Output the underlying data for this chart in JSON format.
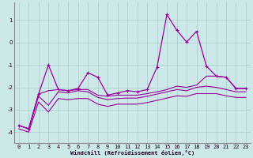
{
  "bg_color": "#cce8e8",
  "grid_color": "#aacccc",
  "line_color": "#990099",
  "xlabel": "Windchill (Refroidissement éolien,°C)",
  "xlim": [
    -0.5,
    23.5
  ],
  "ylim": [
    -4.5,
    1.8
  ],
  "yticks": [
    -4,
    -3,
    -2,
    -1,
    0,
    1
  ],
  "xticks": [
    0,
    1,
    2,
    3,
    4,
    5,
    6,
    7,
    8,
    9,
    10,
    11,
    12,
    13,
    14,
    15,
    16,
    17,
    18,
    19,
    20,
    21,
    22,
    23
  ],
  "series1_x": [
    0,
    1,
    2,
    3,
    4,
    5,
    6,
    7,
    8,
    9,
    10,
    11,
    12,
    13,
    14,
    15,
    16,
    17,
    18,
    19,
    20,
    21,
    22,
    23
  ],
  "series1_y": [
    -3.7,
    -3.85,
    -2.3,
    -1.0,
    -2.1,
    -2.15,
    -2.05,
    -1.35,
    -1.55,
    -2.35,
    -2.25,
    -2.15,
    -2.2,
    -2.1,
    -1.1,
    1.25,
    0.55,
    0.02,
    0.5,
    -1.05,
    -1.5,
    -1.55,
    -2.05,
    -2.05
  ],
  "series2_x": [
    0,
    1,
    2,
    3,
    4,
    5,
    6,
    7,
    8,
    9,
    10,
    11,
    12,
    13,
    14,
    15,
    16,
    17,
    18,
    19,
    20,
    21,
    22,
    23
  ],
  "series2_y": [
    -3.7,
    -3.85,
    -2.3,
    -2.15,
    -2.1,
    -2.15,
    -2.1,
    -2.1,
    -2.35,
    -2.4,
    -2.35,
    -2.35,
    -2.35,
    -2.28,
    -2.2,
    -2.1,
    -1.95,
    -2.0,
    -1.9,
    -1.5,
    -1.5,
    -1.55,
    -2.05,
    -2.05
  ],
  "series3_x": [
    0,
    1,
    2,
    3,
    4,
    5,
    6,
    7,
    8,
    9,
    10,
    11,
    12,
    13,
    14,
    15,
    16,
    17,
    18,
    19,
    20,
    21,
    22,
    23
  ],
  "series3_y": [
    -3.7,
    -3.85,
    -2.4,
    -2.8,
    -2.2,
    -2.25,
    -2.15,
    -2.2,
    -2.45,
    -2.55,
    -2.5,
    -2.48,
    -2.48,
    -2.4,
    -2.3,
    -2.2,
    -2.1,
    -2.15,
    -2.0,
    -1.95,
    -2.0,
    -2.1,
    -2.2,
    -2.2
  ],
  "series4_x": [
    0,
    1,
    2,
    3,
    4,
    5,
    6,
    7,
    8,
    9,
    10,
    11,
    12,
    13,
    14,
    15,
    16,
    17,
    18,
    19,
    20,
    21,
    22,
    23
  ],
  "series4_y": [
    -3.85,
    -4.0,
    -2.65,
    -3.1,
    -2.5,
    -2.55,
    -2.5,
    -2.5,
    -2.75,
    -2.85,
    -2.75,
    -2.75,
    -2.75,
    -2.68,
    -2.58,
    -2.48,
    -2.38,
    -2.4,
    -2.28,
    -2.28,
    -2.28,
    -2.38,
    -2.45,
    -2.45
  ]
}
